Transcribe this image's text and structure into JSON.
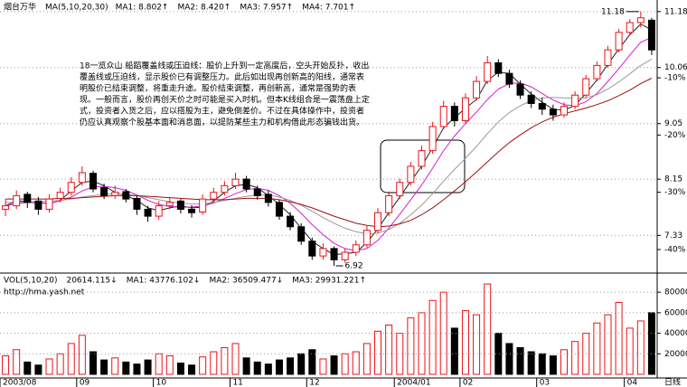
{
  "chart_data": [
    {
      "type": "candlestick",
      "title": "烟台万华",
      "indicator": "MA(5,10,20,30)",
      "period_label": "日线",
      "categories": [
        "2003/08",
        null,
        null,
        null,
        null,
        null,
        null,
        "09",
        null,
        null,
        null,
        null,
        null,
        null,
        "10",
        null,
        null,
        null,
        null,
        null,
        null,
        "11",
        null,
        null,
        null,
        null,
        null,
        null,
        "12",
        null,
        null,
        null,
        null,
        null,
        null,
        null,
        "2004/01",
        null,
        null,
        null,
        null,
        null,
        "02",
        null,
        null,
        null,
        null,
        null,
        null,
        "03",
        null,
        null,
        null,
        null,
        null,
        null,
        null,
        "04",
        null,
        null
      ],
      "ohlc": [
        [
          7.7,
          7.85,
          7.6,
          7.75
        ],
        [
          7.75,
          7.98,
          7.7,
          7.9
        ],
        [
          7.92,
          7.96,
          7.72,
          7.8
        ],
        [
          7.82,
          7.88,
          7.62,
          7.7
        ],
        [
          7.7,
          7.92,
          7.65,
          7.85
        ],
        [
          7.86,
          8.02,
          7.8,
          7.95
        ],
        [
          7.95,
          8.18,
          7.9,
          8.1
        ],
        [
          8.1,
          8.35,
          8.05,
          8.25
        ],
        [
          8.24,
          8.28,
          7.95,
          8.0
        ],
        [
          8.02,
          8.08,
          7.85,
          7.9
        ],
        [
          7.9,
          8.05,
          7.85,
          7.95
        ],
        [
          7.96,
          8.0,
          7.8,
          7.85
        ],
        [
          7.86,
          7.9,
          7.62,
          7.7
        ],
        [
          7.7,
          7.75,
          7.52,
          7.6
        ],
        [
          7.6,
          7.82,
          7.55,
          7.75
        ],
        [
          7.75,
          7.88,
          7.7,
          7.8
        ],
        [
          7.82,
          7.85,
          7.64,
          7.7
        ],
        [
          7.7,
          7.76,
          7.58,
          7.65
        ],
        [
          7.66,
          7.92,
          7.62,
          7.85
        ],
        [
          7.85,
          8.02,
          7.8,
          7.95
        ],
        [
          7.95,
          8.12,
          7.9,
          8.05
        ],
        [
          8.05,
          8.25,
          8.0,
          8.15
        ],
        [
          8.15,
          8.2,
          7.95,
          8.0
        ],
        [
          8.0,
          8.05,
          7.84,
          7.9
        ],
        [
          7.92,
          7.98,
          7.74,
          7.8
        ],
        [
          7.8,
          7.84,
          7.55,
          7.6
        ],
        [
          7.6,
          7.66,
          7.4,
          7.45
        ],
        [
          7.45,
          7.5,
          7.2,
          7.25
        ],
        [
          7.25,
          7.3,
          7.0,
          7.05
        ],
        [
          7.05,
          7.22,
          7.0,
          7.15
        ],
        [
          7.15,
          7.18,
          6.92,
          7.0
        ],
        [
          7.0,
          7.15,
          6.96,
          7.1
        ],
        [
          7.1,
          7.26,
          7.05,
          7.2
        ],
        [
          7.2,
          7.46,
          7.16,
          7.4
        ],
        [
          7.4,
          7.72,
          7.36,
          7.65
        ],
        [
          7.65,
          7.96,
          7.6,
          7.9
        ],
        [
          7.9,
          8.16,
          7.85,
          8.1
        ],
        [
          8.1,
          8.42,
          8.05,
          8.35
        ],
        [
          8.35,
          8.68,
          8.3,
          8.6
        ],
        [
          8.6,
          9.08,
          8.55,
          9.0
        ],
        [
          9.0,
          9.45,
          8.95,
          9.35
        ],
        [
          9.35,
          9.42,
          9.0,
          9.1
        ],
        [
          9.1,
          9.58,
          9.05,
          9.5
        ],
        [
          9.5,
          9.9,
          9.45,
          9.8
        ],
        [
          9.8,
          10.28,
          9.75,
          10.15
        ],
        [
          10.15,
          10.22,
          9.88,
          9.95
        ],
        [
          9.95,
          10.02,
          9.68,
          9.75
        ],
        [
          9.75,
          9.82,
          9.48,
          9.55
        ],
        [
          9.55,
          9.62,
          9.32,
          9.4
        ],
        [
          9.4,
          9.5,
          9.2,
          9.3
        ],
        [
          9.3,
          9.38,
          9.1,
          9.2
        ],
        [
          9.2,
          9.42,
          9.15,
          9.35
        ],
        [
          9.35,
          9.62,
          9.3,
          9.55
        ],
        [
          9.55,
          9.92,
          9.5,
          9.85
        ],
        [
          9.85,
          10.18,
          9.8,
          10.1
        ],
        [
          10.1,
          10.48,
          10.05,
          10.4
        ],
        [
          10.4,
          10.82,
          10.35,
          10.75
        ],
        [
          10.75,
          11.02,
          10.7,
          10.95
        ],
        [
          10.95,
          11.18,
          10.85,
          11.05
        ],
        [
          11.0,
          11.05,
          10.3,
          10.4
        ]
      ],
      "up_color": "#e8141a",
      "down_color": "#000000",
      "series": [
        {
          "name": "MA1: 8.802↑",
          "color": "#222222",
          "values": [
            7.75,
            7.82,
            7.82,
            7.8,
            7.78,
            7.83,
            7.97,
            8.1,
            8.12,
            8.05,
            7.95,
            7.9,
            7.83,
            7.72,
            7.68,
            7.72,
            7.75,
            7.72,
            7.73,
            7.82,
            7.95,
            8.05,
            8.07,
            8.02,
            7.9,
            7.77,
            7.62,
            7.43,
            7.25,
            7.15,
            7.07,
            7.08,
            7.1,
            7.23,
            7.42,
            7.65,
            7.88,
            8.12,
            8.35,
            8.65,
            8.98,
            9.15,
            9.32,
            9.47,
            9.82,
            9.97,
            9.95,
            9.75,
            9.57,
            9.42,
            9.3,
            9.28,
            9.37,
            9.58,
            9.83,
            10.12,
            10.42,
            10.7,
            10.92,
            10.8
          ]
        },
        {
          "name": "MA2: 8.420↑",
          "color": "#d020d0",
          "values": [
            7.75,
            7.78,
            7.8,
            7.79,
            7.79,
            7.82,
            7.88,
            7.97,
            8.03,
            8.04,
            8.02,
            7.98,
            7.91,
            7.83,
            7.77,
            7.74,
            7.73,
            7.73,
            7.75,
            7.79,
            7.86,
            7.93,
            7.99,
            8.01,
            7.98,
            7.9,
            7.79,
            7.64,
            7.48,
            7.34,
            7.22,
            7.15,
            7.12,
            7.15,
            7.26,
            7.43,
            7.63,
            7.84,
            8.06,
            8.32,
            8.6,
            8.84,
            9.05,
            9.25,
            9.47,
            9.66,
            9.76,
            9.77,
            9.7,
            9.58,
            9.46,
            9.38,
            9.36,
            9.43,
            9.58,
            9.8,
            10.04,
            10.3,
            10.55,
            10.65
          ]
        },
        {
          "name": "MA3: 7.957↑",
          "color": "#999999",
          "values": [
            7.8,
            7.8,
            7.81,
            7.81,
            7.82,
            7.83,
            7.85,
            7.88,
            7.9,
            7.92,
            7.93,
            7.92,
            7.9,
            7.87,
            7.84,
            7.81,
            7.79,
            7.78,
            7.78,
            7.8,
            7.83,
            7.86,
            7.89,
            7.91,
            7.91,
            7.88,
            7.83,
            7.76,
            7.67,
            7.58,
            7.5,
            7.43,
            7.38,
            7.35,
            7.36,
            7.41,
            7.5,
            7.62,
            7.76,
            7.93,
            8.12,
            8.3,
            8.48,
            8.67,
            8.88,
            9.08,
            9.24,
            9.36,
            9.45,
            9.5,
            9.51,
            9.5,
            9.49,
            9.5,
            9.56,
            9.66,
            9.79,
            9.94,
            10.1,
            10.22
          ]
        },
        {
          "name": "MA4: 7.701↑",
          "color": "#a01010",
          "values": [
            7.85,
            7.85,
            7.85,
            7.85,
            7.85,
            7.86,
            7.86,
            7.87,
            7.88,
            7.89,
            7.9,
            7.9,
            7.9,
            7.89,
            7.88,
            7.87,
            7.86,
            7.85,
            7.84,
            7.84,
            7.84,
            7.85,
            7.86,
            7.86,
            7.86,
            7.84,
            7.81,
            7.77,
            7.72,
            7.66,
            7.6,
            7.55,
            7.5,
            7.47,
            7.45,
            7.46,
            7.49,
            7.54,
            7.62,
            7.72,
            7.84,
            7.97,
            8.11,
            8.26,
            8.42,
            8.58,
            8.73,
            8.86,
            8.98,
            9.08,
            9.16,
            9.22,
            9.27,
            9.32,
            9.38,
            9.45,
            9.54,
            9.64,
            9.76,
            9.86
          ]
        }
      ],
      "log_y": true,
      "ylim": [
        6.85,
        11.33
      ],
      "yticks": [
        7.33,
        8.15,
        9.05,
        10.06,
        11.18
      ],
      "y2lim": [
        -43.8,
        2.8
      ],
      "y2ticks": [
        {
          "value": -10,
          "label": "-10%"
        },
        {
          "value": -20,
          "label": "-20%"
        },
        {
          "value": -30,
          "label": "-30%"
        },
        {
          "value": -40,
          "label": "-40%"
        }
      ],
      "grid": true,
      "annotations": [
        "11.18",
        "6.92"
      ],
      "note": [
        "18一览众山  船蹈覆盖线或压迫线：股价上升到一定高度后，空头开始反扑，收出",
        "覆盖线或压迫线，显示股价已有调整压力。此后如出现再创新高的阳线，通常表",
        "明股价已结束调整，将重走升途。股价结束调整，再创新高，通常是强势的表",
        "现。一般而言，股价再创天价之时可能是买入时机。但本K线组合是一震荡盘上定",
        "式，投资者入货之后，应以搭股为主，避免倒差价。不过在具体操作中，投资者",
        "仍应认真观察个股基本面和消息面，以提防某些主力和机构借此形态骗钱出货。"
      ]
    },
    {
      "type": "bar",
      "title": "VOL(5,10,20)",
      "header_items": [
        {
          "text": "20614.115↓",
          "color": "#000000"
        },
        {
          "text": "MA1: 43776.102↓",
          "color": "#d020d0"
        },
        {
          "text": "MA2: 36509.477↓",
          "color": "#777777"
        },
        {
          "text": "MA3: 29931.221↑",
          "color": "#a01010"
        }
      ],
      "watermark": "http://hma.yash.net",
      "values": [
        18000,
        24000,
        12000,
        9000,
        15000,
        20000,
        30000,
        38000,
        22000,
        14000,
        16000,
        12000,
        10000,
        14000,
        20000,
        18000,
        11000,
        9000,
        17000,
        22000,
        26000,
        30000,
        16000,
        12000,
        10000,
        14000,
        16000,
        20000,
        24000,
        15000,
        18000,
        20000,
        22000,
        30000,
        42000,
        48000,
        40000,
        55000,
        60000,
        72000,
        80000,
        45000,
        62000,
        58000,
        88000,
        40000,
        30000,
        26000,
        22000,
        20000,
        18000,
        24000,
        32000,
        40000,
        50000,
        58000,
        70000,
        45000,
        52000,
        60000
      ],
      "ylim": [
        0,
        96000
      ],
      "yticks": [
        20000,
        40000,
        60000,
        80000
      ]
    }
  ]
}
